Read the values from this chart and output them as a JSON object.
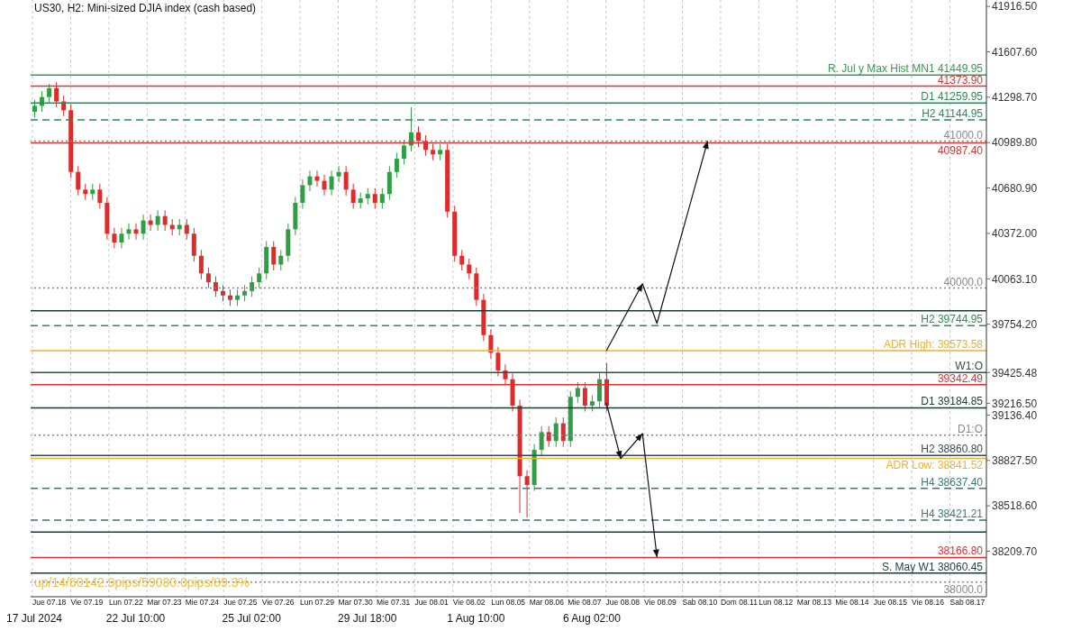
{
  "chart_data": {
    "type": "candlestick",
    "title": "US30, H2:  Mini-sized DJIA index (cash based)",
    "categories": [
      "17 Jul 2024",
      null,
      null,
      null,
      null,
      null,
      null,
      null,
      null,
      null,
      null,
      null,
      null,
      null,
      "22 Jul 10:00",
      null,
      null,
      null,
      null,
      null,
      null,
      null,
      null,
      null,
      null,
      null,
      null,
      null,
      null,
      null,
      "25 Jul 02:00",
      null,
      null,
      null,
      null,
      null,
      null,
      null,
      null,
      null,
      null,
      null,
      null,
      null,
      null,
      null,
      "29 Jul 18:00",
      null,
      null,
      null,
      null,
      null,
      null,
      null,
      null,
      null,
      null,
      null,
      null,
      null,
      null,
      "1 Aug 10:00",
      null,
      null,
      null,
      null,
      null,
      null,
      null,
      null,
      null,
      null,
      null,
      null,
      null,
      null,
      null,
      "6 Aug 02:00",
      null,
      null,
      null,
      null,
      null,
      null,
      null,
      null,
      null,
      null,
      null,
      null,
      null,
      null,
      null,
      null,
      null,
      null,
      null,
      null,
      null,
      null,
      null,
      null,
      null,
      null,
      null,
      null,
      null,
      null,
      null,
      null,
      null,
      null,
      null,
      null,
      null,
      null,
      null,
      null,
      null,
      null,
      null,
      null,
      null,
      null,
      null,
      null,
      null,
      null,
      null,
      null,
      null,
      null
    ],
    "ohlc": [
      [
        41200,
        41280,
        41160,
        41240
      ],
      [
        41240,
        41340,
        41200,
        41300
      ],
      [
        41300,
        41390,
        41260,
        41360
      ],
      [
        41360,
        41400,
        41230,
        41270
      ],
      [
        41270,
        41310,
        41170,
        41210
      ],
      [
        41210,
        41250,
        40750,
        40790
      ],
      [
        40790,
        40830,
        40630,
        40670
      ],
      [
        40670,
        40710,
        40600,
        40640
      ],
      [
        40640,
        40710,
        40600,
        40670
      ],
      [
        40670,
        40710,
        40540,
        40580
      ],
      [
        40580,
        40620,
        40330,
        40370
      ],
      [
        40370,
        40410,
        40270,
        40310
      ],
      [
        40310,
        40410,
        40270,
        40370
      ],
      [
        40370,
        40440,
        40330,
        40400
      ],
      [
        40400,
        40440,
        40330,
        40370
      ],
      [
        40370,
        40500,
        40330,
        40460
      ],
      [
        40460,
        40500,
        40390,
        40430
      ],
      [
        40430,
        40530,
        40390,
        40490
      ],
      [
        40490,
        40530,
        40390,
        40430
      ],
      [
        40430,
        40470,
        40360,
        40400
      ],
      [
        40400,
        40470,
        40360,
        40430
      ],
      [
        40430,
        40470,
        40330,
        40370
      ],
      [
        40370,
        40410,
        40180,
        40220
      ],
      [
        40220,
        40260,
        40060,
        40100
      ],
      [
        40100,
        40140,
        40000,
        40040
      ],
      [
        40040,
        40080,
        39940,
        39980
      ],
      [
        39980,
        40020,
        39910,
        39950
      ],
      [
        39950,
        39990,
        39880,
        39920
      ],
      [
        39920,
        39990,
        39880,
        39950
      ],
      [
        39950,
        40020,
        39910,
        39980
      ],
      [
        39980,
        40080,
        39940,
        40040
      ],
      [
        40040,
        40140,
        40000,
        40100
      ],
      [
        40100,
        40320,
        40060,
        40280
      ],
      [
        40280,
        40320,
        40120,
        40160
      ],
      [
        40160,
        40260,
        40120,
        40220
      ],
      [
        40220,
        40440,
        40180,
        40400
      ],
      [
        40400,
        40620,
        40360,
        40580
      ],
      [
        40580,
        40740,
        40540,
        40700
      ],
      [
        40700,
        40800,
        40660,
        40760
      ],
      [
        40760,
        40800,
        40690,
        40730
      ],
      [
        40730,
        40770,
        40630,
        40670
      ],
      [
        40670,
        40800,
        40630,
        40760
      ],
      [
        40760,
        40830,
        40720,
        40790
      ],
      [
        40790,
        40830,
        40630,
        40670
      ],
      [
        40670,
        40710,
        40540,
        40580
      ],
      [
        40580,
        40650,
        40540,
        40610
      ],
      [
        40610,
        40680,
        40570,
        40640
      ],
      [
        40640,
        40680,
        40540,
        40580
      ],
      [
        40580,
        40680,
        40540,
        40640
      ],
      [
        40640,
        40830,
        40600,
        40790
      ],
      [
        40790,
        40920,
        40750,
        40880
      ],
      [
        40880,
        41010,
        40840,
        40970
      ],
      [
        40970,
        41230,
        40930,
        41060
      ],
      [
        41060,
        41100,
        40960,
        41000
      ],
      [
        41000,
        41040,
        40900,
        40940
      ],
      [
        40940,
        40980,
        40870,
        40910
      ],
      [
        40910,
        40980,
        40870,
        40940
      ],
      [
        40940,
        40980,
        40480,
        40520
      ],
      [
        40520,
        40560,
        40180,
        40220
      ],
      [
        40220,
        40260,
        40120,
        40160
      ],
      [
        40160,
        40200,
        40060,
        40100
      ],
      [
        40100,
        40140,
        39880,
        39920
      ],
      [
        39920,
        39960,
        39640,
        39680
      ],
      [
        39680,
        39720,
        39520,
        39560
      ],
      [
        39560,
        39600,
        39400,
        39440
      ],
      [
        39440,
        39480,
        39340,
        39380
      ],
      [
        39380,
        39420,
        39160,
        39200
      ],
      [
        39200,
        39240,
        38470,
        38720
      ],
      [
        38720,
        38760,
        38440,
        38660
      ],
      [
        38660,
        38940,
        38620,
        38900
      ],
      [
        38900,
        39060,
        38860,
        39020
      ],
      [
        39020,
        39060,
        38920,
        38960
      ],
      [
        38960,
        39120,
        38920,
        39080
      ],
      [
        39080,
        39120,
        38920,
        38960
      ],
      [
        38960,
        39300,
        38920,
        39260
      ],
      [
        39260,
        39360,
        39220,
        39320
      ],
      [
        39320,
        39360,
        39160,
        39200
      ],
      [
        39200,
        39270,
        39160,
        39230
      ],
      [
        39230,
        39420,
        39190,
        39380
      ],
      [
        39380,
        39490,
        39160,
        39200
      ],
      null,
      null,
      null,
      null,
      null,
      null,
      null,
      null,
      null,
      null,
      null,
      null,
      null,
      null,
      null,
      null,
      null,
      null,
      null,
      null,
      null,
      null,
      null,
      null,
      null,
      null,
      null,
      null,
      null,
      null,
      null,
      null,
      null,
      null,
      null,
      null,
      null,
      null,
      null,
      null,
      null,
      null,
      null,
      null,
      null,
      null,
      null,
      null,
      null,
      null,
      null,
      null
    ],
    "ylim": [
      37900,
      41960
    ],
    "yticks": [
      {
        "value": 41916.5,
        "label": "41916.50"
      },
      {
        "value": 41607.6,
        "label": "41607.60"
      },
      {
        "value": 41298.7,
        "label": "41298.70"
      },
      {
        "value": 40989.8,
        "label": "40989.80"
      },
      {
        "value": 40680.9,
        "label": "40680.90"
      },
      {
        "value": 40372,
        "label": "40372.00"
      },
      {
        "value": 40063.1,
        "label": "40063.10"
      },
      {
        "value": 39754.2,
        "label": "39754.20"
      },
      {
        "value": 39425.48,
        "label": "39425.48"
      },
      {
        "value": 39216.5,
        "label": "39216.50"
      },
      {
        "value": 39136.4,
        "label": "39136.40"
      },
      {
        "value": 38827.5,
        "label": "38827.50"
      },
      {
        "value": 38518.6,
        "label": "38518.60"
      },
      {
        "value": 38209.7,
        "label": "38209.70"
      }
    ],
    "grid": "x",
    "legend": false,
    "ref_lines": [
      {
        "axis": "y",
        "value": 41449.95,
        "label": "R. Jul y Max Hist MN1 41449.95",
        "color": "#2e9e4f",
        "line_style": "solid"
      },
      {
        "axis": "y",
        "value": 41373.9,
        "label": "41373.90",
        "color": "#e03030",
        "line_style": "solid"
      },
      {
        "axis": "y",
        "value": 41259.95,
        "label": "D1 41259.95",
        "color": "#2e8b57",
        "line_style": "solid"
      },
      {
        "axis": "y",
        "value": 41144.95,
        "label": "H2 41144.95",
        "color": "#2e8b57",
        "line_style": "dashed"
      },
      {
        "axis": "y",
        "value": 41000,
        "label": "41000.0",
        "color": "#888888",
        "line_style": "dotted"
      },
      {
        "axis": "y",
        "value": 40987.4,
        "label": "40987.40",
        "color": "#e03030",
        "line_style": "solid"
      },
      {
        "axis": "y",
        "value": 40000,
        "label": "40000.0",
        "color": "#888888",
        "line_style": "dotted"
      },
      {
        "axis": "y",
        "value": 39845,
        "color": "#1a3c34",
        "line_style": "solid"
      },
      {
        "axis": "y",
        "value": 39744.95,
        "label": "H2 39744.95",
        "color": "#2e8b57",
        "line_style": "dashed"
      },
      {
        "axis": "y",
        "value": 39573.58,
        "label": "ADR High: 39573.58",
        "color": "#f0b030",
        "line_style": "solid"
      },
      {
        "axis": "y",
        "value": 39425.48,
        "label": "W1:O",
        "color": "#2f4f4f",
        "line_style": "solid"
      },
      {
        "axis": "y",
        "value": 39342.49,
        "label": "39342.49",
        "color": "#e03030",
        "line_style": "solid"
      },
      {
        "axis": "y",
        "value": 39184.85,
        "label": "D1 39184.85",
        "color": "#1a3c34",
        "line_style": "solid"
      },
      {
        "axis": "y",
        "value": 39000,
        "label": "D1:O",
        "color": "#888888",
        "line_style": "dotted"
      },
      {
        "axis": "y",
        "value": 38860.8,
        "label": "H2 38860.80",
        "color": "#2f4f4f",
        "line_style": "solid"
      },
      {
        "axis": "y",
        "value": 38841.52,
        "label": "ADR Low: 38841.52",
        "color": "#f0b030",
        "line_style": "solid"
      },
      {
        "axis": "y",
        "value": 38637.4,
        "label": "H4 38637.40",
        "color": "#3a7a6a",
        "line_style": "dashed"
      },
      {
        "axis": "y",
        "value": 38421.21,
        "label": "H4 38421.21",
        "color": "#3a7a6a",
        "line_style": "dashed"
      },
      {
        "axis": "y",
        "value": 38340,
        "color": "#1a3c34",
        "line_style": "solid"
      },
      {
        "axis": "y",
        "value": 38166.8,
        "label": "38166.80",
        "color": "#e03030",
        "line_style": "solid"
      },
      {
        "axis": "y",
        "value": 38060.45,
        "label": "S. May W1 38060.45",
        "color": "#1a3c34",
        "line_style": "solid"
      },
      {
        "axis": "y",
        "value": 38000,
        "label": "38000.0",
        "color": "#888888",
        "line_style": "dotted"
      }
    ],
    "annotations": [
      "up/14/60142.9pips/59080.0pips/89.3%",
      "Jue 07.18",
      "Vie 07.19",
      "Lun 07.22",
      "Mar 07.23",
      "Mie 07.24",
      "Jue 07.25",
      "Vie 07.26",
      "Lun 07.29",
      "Mar 07.30",
      "Mie 07.31",
      "Jue 08.01",
      "Vie 08.02",
      "Lun 08.05",
      "Mar 08.06",
      "Mie 08.07",
      "Jue 08.08",
      "Vie 08.09",
      "Sab 08.10",
      "Dom 08.11",
      "Lun 08.12",
      "Mar 08.13",
      "Mie 08.14",
      "Jue 08.15",
      "Vie 08.16",
      "Sab 08.17"
    ]
  }
}
